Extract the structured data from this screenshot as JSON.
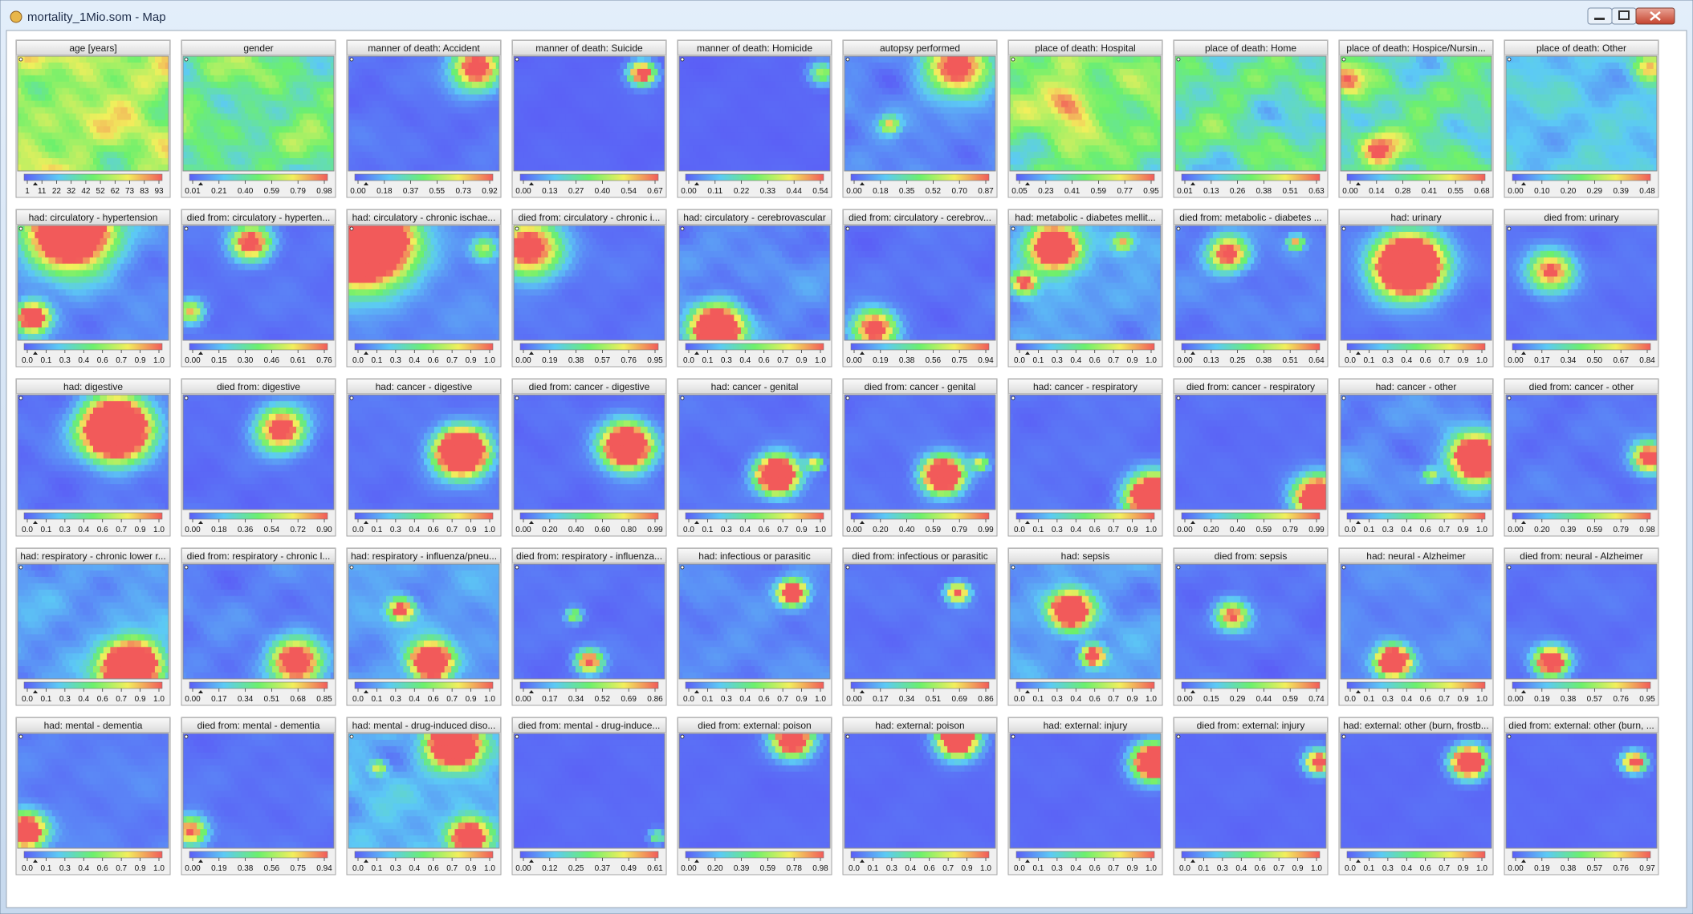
{
  "window": {
    "title": "mortality_1Mio.som - Map"
  },
  "panels": [
    {
      "title": "age [years]",
      "ticks": [
        "1",
        "11",
        "22",
        "32",
        "42",
        "52",
        "62",
        "73",
        "83",
        "93"
      ]
    },
    {
      "title": "gender",
      "ticks": [
        "0.01",
        "0.21",
        "0.40",
        "0.59",
        "0.79",
        "0.98"
      ]
    },
    {
      "title": "manner of death: Accident",
      "ticks": [
        "0.00",
        "0.18",
        "0.37",
        "0.55",
        "0.73",
        "0.92"
      ]
    },
    {
      "title": "manner of death: Suicide",
      "ticks": [
        "0.00",
        "0.13",
        "0.27",
        "0.40",
        "0.54",
        "0.67"
      ]
    },
    {
      "title": "manner of death: Homicide",
      "ticks": [
        "0.00",
        "0.11",
        "0.22",
        "0.33",
        "0.44",
        "0.54"
      ]
    },
    {
      "title": "autopsy performed",
      "ticks": [
        "0.00",
        "0.18",
        "0.35",
        "0.52",
        "0.70",
        "0.87"
      ]
    },
    {
      "title": "place of death: Hospital",
      "ticks": [
        "0.05",
        "0.23",
        "0.41",
        "0.59",
        "0.77",
        "0.95"
      ]
    },
    {
      "title": "place of death: Home",
      "ticks": [
        "0.01",
        "0.13",
        "0.26",
        "0.38",
        "0.51",
        "0.63"
      ]
    },
    {
      "title": "place of death: Hospice/Nursin...",
      "ticks": [
        "0.00",
        "0.14",
        "0.28",
        "0.41",
        "0.55",
        "0.68"
      ]
    },
    {
      "title": "place of death: Other",
      "ticks": [
        "0.00",
        "0.10",
        "0.20",
        "0.29",
        "0.39",
        "0.48"
      ]
    },
    {
      "title": "had: circulatory - hypertension",
      "ticks": [
        "0.0",
        "0.1",
        "0.3",
        "0.4",
        "0.6",
        "0.7",
        "0.9",
        "1.0"
      ]
    },
    {
      "title": "died from: circulatory - hyperten...",
      "ticks": [
        "0.00",
        "0.15",
        "0.30",
        "0.46",
        "0.61",
        "0.76"
      ]
    },
    {
      "title": "had: circulatory - chronic ischae...",
      "ticks": [
        "0.0",
        "0.1",
        "0.3",
        "0.4",
        "0.6",
        "0.7",
        "0.9",
        "1.0"
      ]
    },
    {
      "title": "died from: circulatory - chronic i...",
      "ticks": [
        "0.00",
        "0.19",
        "0.38",
        "0.57",
        "0.76",
        "0.95"
      ]
    },
    {
      "title": "had: circulatory - cerebrovascular",
      "ticks": [
        "0.0",
        "0.1",
        "0.3",
        "0.4",
        "0.6",
        "0.7",
        "0.9",
        "1.0"
      ]
    },
    {
      "title": "died from: circulatory - cerebrov...",
      "ticks": [
        "0.00",
        "0.19",
        "0.38",
        "0.56",
        "0.75",
        "0.94"
      ]
    },
    {
      "title": "had: metabolic - diabetes mellit...",
      "ticks": [
        "0.0",
        "0.1",
        "0.3",
        "0.4",
        "0.6",
        "0.7",
        "0.9",
        "1.0"
      ]
    },
    {
      "title": "died from: metabolic - diabetes ...",
      "ticks": [
        "0.00",
        "0.13",
        "0.25",
        "0.38",
        "0.51",
        "0.64"
      ]
    },
    {
      "title": "had: urinary",
      "ticks": [
        "0.0",
        "0.1",
        "0.3",
        "0.4",
        "0.6",
        "0.7",
        "0.9",
        "1.0"
      ]
    },
    {
      "title": "died from: urinary",
      "ticks": [
        "0.00",
        "0.17",
        "0.34",
        "0.50",
        "0.67",
        "0.84"
      ]
    },
    {
      "title": "had: digestive",
      "ticks": [
        "0.0",
        "0.1",
        "0.3",
        "0.4",
        "0.6",
        "0.7",
        "0.9",
        "1.0"
      ]
    },
    {
      "title": "died from: digestive",
      "ticks": [
        "0.00",
        "0.18",
        "0.36",
        "0.54",
        "0.72",
        "0.90"
      ]
    },
    {
      "title": "had: cancer - digestive",
      "ticks": [
        "0.0",
        "0.1",
        "0.3",
        "0.4",
        "0.6",
        "0.7",
        "0.9",
        "1.0"
      ]
    },
    {
      "title": "died from: cancer - digestive",
      "ticks": [
        "0.00",
        "0.20",
        "0.40",
        "0.60",
        "0.80",
        "0.99"
      ]
    },
    {
      "title": "had: cancer - genital",
      "ticks": [
        "0.0",
        "0.1",
        "0.3",
        "0.4",
        "0.6",
        "0.7",
        "0.9",
        "1.0"
      ]
    },
    {
      "title": "died from: cancer - genital",
      "ticks": [
        "0.00",
        "0.20",
        "0.40",
        "0.59",
        "0.79",
        "0.99"
      ]
    },
    {
      "title": "had: cancer - respiratory",
      "ticks": [
        "0.0",
        "0.1",
        "0.3",
        "0.4",
        "0.6",
        "0.7",
        "0.9",
        "1.0"
      ]
    },
    {
      "title": "died from: cancer - respiratory",
      "ticks": [
        "0.00",
        "0.20",
        "0.40",
        "0.59",
        "0.79",
        "0.99"
      ]
    },
    {
      "title": "had: cancer - other",
      "ticks": [
        "0.0",
        "0.1",
        "0.3",
        "0.4",
        "0.6",
        "0.7",
        "0.9",
        "1.0"
      ]
    },
    {
      "title": "died from: cancer - other",
      "ticks": [
        "0.00",
        "0.20",
        "0.39",
        "0.59",
        "0.79",
        "0.98"
      ]
    },
    {
      "title": "had: respiratory - chronic lower r...",
      "ticks": [
        "0.0",
        "0.1",
        "0.3",
        "0.4",
        "0.6",
        "0.7",
        "0.9",
        "1.0"
      ]
    },
    {
      "title": "died from: respiratory - chronic l...",
      "ticks": [
        "0.00",
        "0.17",
        "0.34",
        "0.51",
        "0.68",
        "0.85"
      ]
    },
    {
      "title": "had: respiratory - influenza/pneu...",
      "ticks": [
        "0.0",
        "0.1",
        "0.3",
        "0.4",
        "0.6",
        "0.7",
        "0.9",
        "1.0"
      ]
    },
    {
      "title": "died from: respiratory - influenza...",
      "ticks": [
        "0.00",
        "0.17",
        "0.34",
        "0.52",
        "0.69",
        "0.86"
      ]
    },
    {
      "title": "had: infectious or parasitic",
      "ticks": [
        "0.0",
        "0.1",
        "0.3",
        "0.4",
        "0.6",
        "0.7",
        "0.9",
        "1.0"
      ]
    },
    {
      "title": "died from: infectious or parasitic",
      "ticks": [
        "0.00",
        "0.17",
        "0.34",
        "0.51",
        "0.69",
        "0.86"
      ]
    },
    {
      "title": "had: sepsis",
      "ticks": [
        "0.0",
        "0.1",
        "0.3",
        "0.4",
        "0.6",
        "0.7",
        "0.9",
        "1.0"
      ]
    },
    {
      "title": "died from: sepsis",
      "ticks": [
        "0.00",
        "0.15",
        "0.29",
        "0.44",
        "0.59",
        "0.74"
      ]
    },
    {
      "title": "had: neural - Alzheimer",
      "ticks": [
        "0.0",
        "0.1",
        "0.3",
        "0.4",
        "0.6",
        "0.7",
        "0.9",
        "1.0"
      ]
    },
    {
      "title": "died from: neural - Alzheimer",
      "ticks": [
        "0.00",
        "0.19",
        "0.38",
        "0.57",
        "0.76",
        "0.95"
      ]
    },
    {
      "title": "had: mental - dementia",
      "ticks": [
        "0.0",
        "0.1",
        "0.3",
        "0.4",
        "0.6",
        "0.7",
        "0.9",
        "1.0"
      ]
    },
    {
      "title": "died from: mental - dementia",
      "ticks": [
        "0.00",
        "0.19",
        "0.38",
        "0.56",
        "0.75",
        "0.94"
      ]
    },
    {
      "title": "had: mental - drug-induced diso...",
      "ticks": [
        "0.0",
        "0.1",
        "0.3",
        "0.4",
        "0.6",
        "0.7",
        "0.9",
        "1.0"
      ]
    },
    {
      "title": "died from: mental - drug-induce...",
      "ticks": [
        "0.00",
        "0.12",
        "0.25",
        "0.37",
        "0.49",
        "0.61"
      ]
    },
    {
      "title": "died from: external: poison",
      "ticks": [
        "0.00",
        "0.20",
        "0.39",
        "0.59",
        "0.78",
        "0.98"
      ]
    },
    {
      "title": "had: external: poison",
      "ticks": [
        "0.0",
        "0.1",
        "0.3",
        "0.4",
        "0.6",
        "0.7",
        "0.9",
        "1.0"
      ]
    },
    {
      "title": "had: external: injury",
      "ticks": [
        "0.0",
        "0.1",
        "0.3",
        "0.4",
        "0.6",
        "0.7",
        "0.9",
        "1.0"
      ]
    },
    {
      "title": "died from: external: injury",
      "ticks": [
        "0.0",
        "0.1",
        "0.3",
        "0.4",
        "0.6",
        "0.7",
        "0.9",
        "1.0"
      ]
    },
    {
      "title": "had: external: other (burn, frostb...",
      "ticks": [
        "0.0",
        "0.1",
        "0.3",
        "0.4",
        "0.6",
        "0.7",
        "0.9",
        "1.0"
      ]
    },
    {
      "title": "died from: external: other (burn, ...",
      "ticks": [
        "0.00",
        "0.19",
        "0.38",
        "0.57",
        "0.76",
        "0.97"
      ]
    }
  ]
}
